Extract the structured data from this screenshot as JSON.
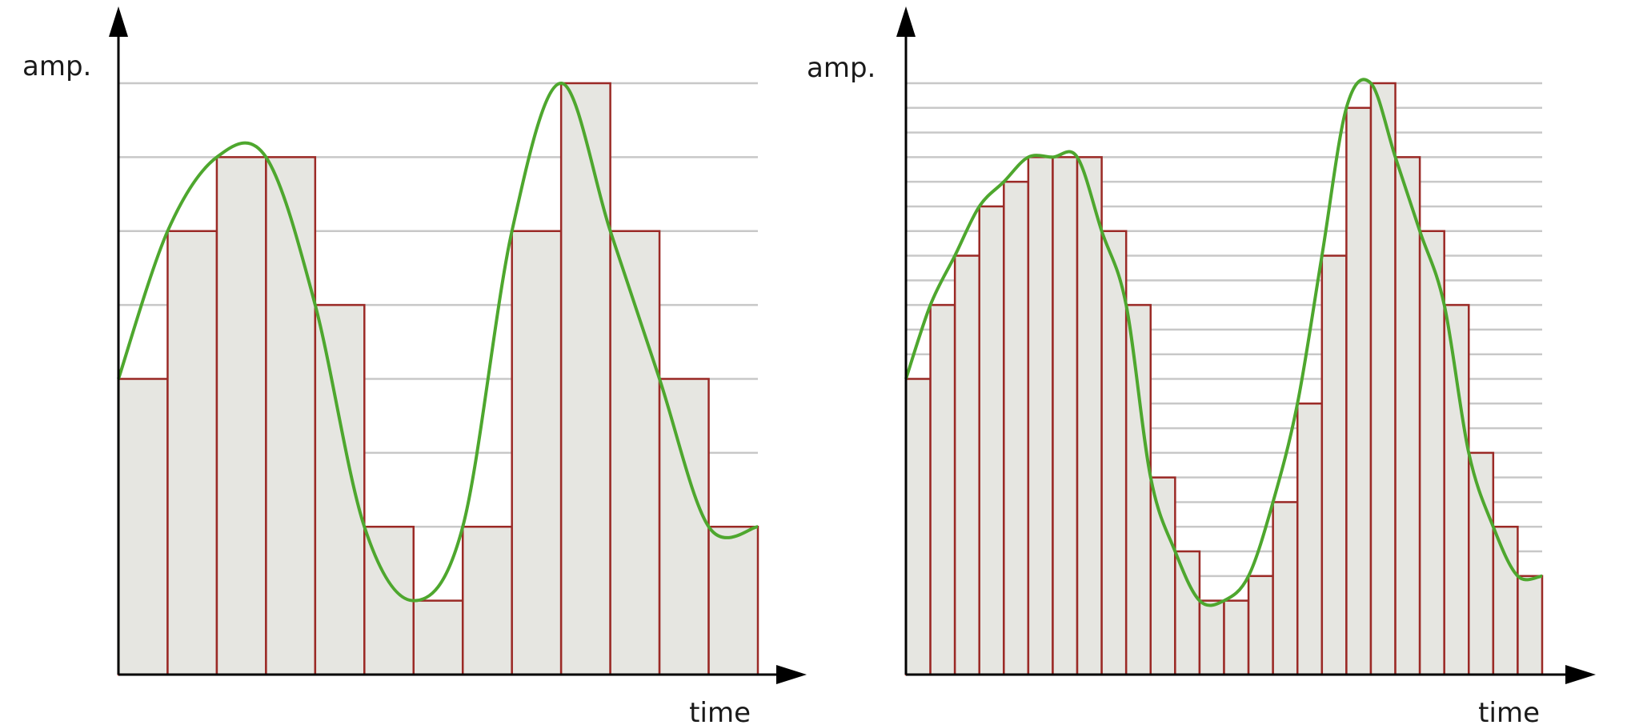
{
  "chart_data": [
    {
      "type": "bar",
      "panel": "left",
      "xlabel": "time",
      "ylabel": "amp.",
      "grid": true,
      "y_levels": 8,
      "quantized_values": [
        4,
        6,
        7,
        7,
        5,
        2,
        1,
        2,
        6,
        8,
        6,
        4,
        2
      ],
      "curve": {
        "color": "#4ea72e"
      }
    },
    {
      "type": "bar",
      "panel": "right",
      "xlabel": "time",
      "ylabel": "amp.",
      "grid": true,
      "y_levels": 24,
      "quantized_values": [
        12,
        15,
        17,
        19,
        20,
        21,
        21,
        21,
        18,
        15,
        8,
        5,
        3,
        3,
        4,
        7,
        11,
        17,
        23,
        24,
        21,
        18,
        15,
        9,
        6,
        4
      ],
      "curve": {
        "color": "#4ea72e"
      }
    }
  ],
  "colors": {
    "bar_fill": "#e6e6e1",
    "bar_stroke": "#9b2a26",
    "grid": "#c8c8c8",
    "axis": "#000000",
    "curve": "#4ea72e"
  }
}
